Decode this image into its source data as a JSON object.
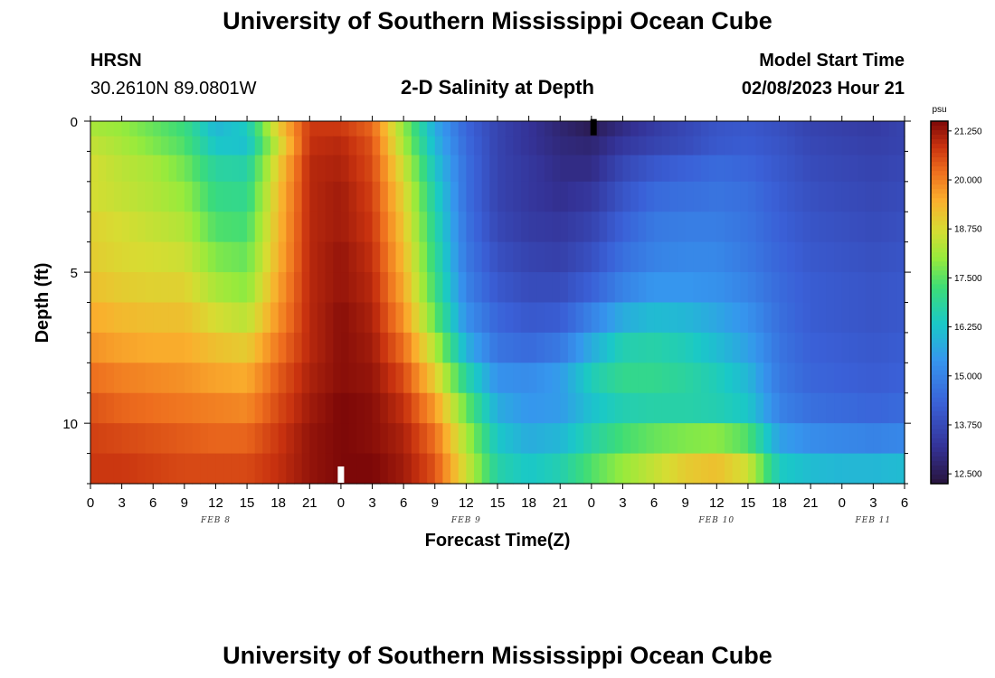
{
  "header": {
    "title": "University of Southern Mississippi Ocean Cube",
    "station": "HRSN",
    "coordinates": "30.2610N  89.0801W",
    "subtitle": "2-D Salinity at Depth",
    "model_start_label": "Model Start Time",
    "model_start_value": "02/08/2023 Hour 21"
  },
  "footer": {
    "title": "University of Southern Mississippi Ocean Cube"
  },
  "chart_data": {
    "type": "heatmap",
    "title": "2-D Salinity at Depth",
    "xlabel": "Forecast Time(Z)",
    "ylabel": "Depth (ft)",
    "x_range_hours": [
      0,
      78
    ],
    "y_range_ft": [
      0,
      12
    ],
    "y_ticks": [
      "0",
      "5",
      "10"
    ],
    "x_tick_labels": [
      "0",
      "3",
      "6",
      "9",
      "12",
      "15",
      "18",
      "21",
      "0",
      "3",
      "6",
      "9",
      "12",
      "15",
      "18",
      "21",
      "0",
      "3",
      "6",
      "9",
      "12",
      "15",
      "18",
      "21",
      "0",
      "3",
      "6"
    ],
    "date_labels": [
      {
        "label": "FEB 8",
        "hour": 12
      },
      {
        "label": "FEB 9",
        "hour": 36
      },
      {
        "label": "FEB 10",
        "hour": 60
      },
      {
        "label": "FEB 11",
        "hour": 75
      }
    ],
    "colorbar": {
      "unit": "psu",
      "min": 12.25,
      "max": 21.5,
      "ticks": [
        "21.250",
        "20.000",
        "18.750",
        "17.500",
        "16.250",
        "15.000",
        "13.750",
        "12.500"
      ],
      "tick_values": [
        21.25,
        20.0,
        18.75,
        17.5,
        16.25,
        15.0,
        13.75,
        12.5
      ]
    },
    "markers": [
      {
        "hour": 48.2,
        "depth_ft": 0.2,
        "color": "#000000"
      },
      {
        "hour": 24.0,
        "depth_ft": 11.7,
        "color": "#ffffff"
      }
    ],
    "time_hours": [
      0,
      3,
      6,
      9,
      12,
      15,
      18,
      21,
      24,
      27,
      30,
      33,
      36,
      39,
      42,
      45,
      48,
      51,
      54,
      57,
      60,
      63,
      66,
      69,
      72,
      75,
      78
    ],
    "layer_depths_ft": [
      0.25,
      0.75,
      1.5,
      2.5,
      3.5,
      4.5,
      5.5,
      6.5,
      7.5,
      8.5,
      9.5,
      10.5,
      11.5
    ],
    "salinity_psu": [
      [
        18.2,
        18.0,
        17.6,
        17.2,
        16.0,
        16.4,
        19.0,
        20.8,
        20.8,
        20.3,
        18.0,
        15.8,
        14.4,
        13.6,
        13.2,
        12.8,
        12.5,
        13.0,
        13.4,
        13.7,
        14.0,
        14.1,
        13.9,
        13.6,
        13.5,
        13.4,
        13.6
      ],
      [
        18.5,
        18.2,
        17.8,
        17.4,
        16.3,
        16.2,
        18.6,
        20.9,
        21.0,
        20.5,
        18.2,
        16.0,
        14.5,
        13.6,
        13.2,
        12.9,
        12.8,
        13.3,
        13.6,
        13.8,
        14.1,
        14.2,
        14.0,
        13.7,
        13.6,
        13.5,
        13.6
      ],
      [
        18.7,
        18.4,
        18.2,
        17.7,
        16.8,
        16.7,
        19.0,
        21.0,
        21.1,
        20.6,
        18.6,
        16.3,
        14.6,
        13.6,
        13.3,
        13.0,
        13.0,
        13.7,
        14.1,
        14.3,
        14.5,
        14.4,
        14.1,
        13.8,
        13.7,
        13.6,
        13.7
      ],
      [
        18.7,
        18.5,
        18.3,
        18.0,
        17.1,
        17.0,
        19.2,
        21.0,
        21.2,
        20.7,
        18.9,
        16.6,
        14.6,
        13.6,
        13.3,
        13.1,
        13.3,
        14.0,
        14.5,
        14.6,
        14.7,
        14.6,
        14.2,
        13.9,
        13.8,
        13.7,
        13.8
      ],
      [
        18.9,
        18.7,
        18.5,
        18.3,
        17.4,
        17.3,
        19.3,
        21.0,
        21.2,
        20.8,
        19.1,
        16.8,
        14.7,
        13.7,
        13.4,
        13.3,
        13.6,
        14.3,
        14.8,
        14.9,
        14.9,
        14.7,
        14.3,
        14.0,
        13.9,
        13.8,
        13.9
      ],
      [
        19.0,
        18.8,
        18.7,
        18.6,
        17.8,
        17.6,
        19.4,
        21.0,
        21.3,
        20.9,
        19.3,
        17.0,
        14.8,
        13.9,
        13.6,
        13.5,
        13.9,
        14.6,
        15.0,
        15.1,
        15.1,
        14.8,
        14.4,
        14.1,
        14.0,
        13.9,
        14.0
      ],
      [
        19.2,
        19.0,
        18.9,
        18.9,
        18.2,
        17.9,
        19.6,
        21.0,
        21.3,
        21.0,
        19.5,
        17.2,
        15.0,
        14.1,
        13.8,
        13.8,
        14.3,
        15.0,
        15.4,
        15.4,
        15.3,
        15.0,
        14.5,
        14.2,
        14.1,
        14.0,
        14.1
      ],
      [
        19.5,
        19.3,
        19.2,
        19.2,
        18.7,
        18.4,
        19.8,
        21.0,
        21.4,
        21.1,
        19.8,
        17.6,
        15.3,
        14.4,
        14.1,
        14.2,
        15.0,
        15.8,
        16.1,
        16.0,
        15.7,
        15.3,
        14.6,
        14.2,
        14.1,
        14.0,
        14.1
      ],
      [
        19.8,
        19.6,
        19.5,
        19.5,
        19.2,
        19.0,
        20.1,
        21.0,
        21.4,
        21.2,
        20.2,
        18.3,
        15.9,
        14.7,
        14.5,
        14.8,
        15.8,
        16.6,
        16.7,
        16.5,
        16.1,
        15.6,
        14.7,
        14.3,
        14.2,
        14.1,
        14.2
      ],
      [
        20.2,
        20.0,
        19.9,
        19.8,
        19.6,
        19.5,
        20.4,
        21.1,
        21.4,
        21.3,
        20.6,
        19.0,
        16.8,
        15.3,
        15.2,
        15.5,
        16.5,
        17.0,
        17.0,
        16.8,
        16.5,
        16.0,
        14.8,
        14.4,
        14.3,
        14.2,
        14.3
      ],
      [
        20.5,
        20.3,
        20.2,
        20.1,
        20.0,
        19.9,
        20.6,
        21.2,
        21.5,
        21.4,
        20.9,
        19.7,
        17.6,
        15.8,
        15.4,
        15.5,
        16.2,
        16.6,
        16.7,
        16.7,
        16.6,
        16.3,
        15.0,
        14.6,
        14.5,
        14.4,
        14.5
      ],
      [
        20.7,
        20.6,
        20.5,
        20.4,
        20.3,
        20.3,
        20.8,
        21.3,
        21.5,
        21.4,
        21.1,
        20.2,
        18.2,
        16.3,
        15.8,
        16.0,
        16.7,
        17.3,
        17.6,
        17.8,
        17.9,
        17.4,
        15.6,
        15.2,
        15.1,
        15.0,
        15.1
      ],
      [
        20.8,
        20.8,
        20.7,
        20.6,
        20.6,
        20.6,
        20.9,
        21.3,
        21.5,
        21.5,
        21.2,
        20.5,
        18.6,
        16.7,
        16.3,
        16.6,
        17.4,
        18.0,
        18.5,
        19.0,
        19.2,
        18.6,
        16.4,
        16.1,
        16.0,
        16.0,
        16.1
      ]
    ]
  }
}
